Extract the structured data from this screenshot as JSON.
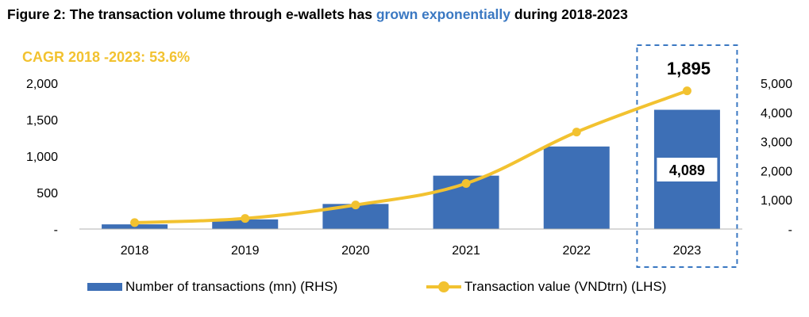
{
  "chart_data": {
    "type": "bar+line",
    "title": {
      "prefix": "Figure 2: The transaction volume through e-wallets has ",
      "highlight": "grown exponentially",
      "suffix": " during 2018-2023"
    },
    "annotation": "CAGR 2018 -2023: 53.6%",
    "categories": [
      "2018",
      "2019",
      "2020",
      "2021",
      "2022",
      "2023"
    ],
    "series": [
      {
        "name": "Number of transactions (mn) (RHS)",
        "type": "bar",
        "axis": "right",
        "color": "#3d6fb6",
        "values": [
          160,
          330,
          860,
          1830,
          2830,
          4089
        ]
      },
      {
        "name": "Transaction value (VNDtrn) (LHS)",
        "type": "line",
        "axis": "left",
        "color": "#f2c230",
        "values": [
          88,
          145,
          330,
          625,
          1330,
          1895
        ]
      }
    ],
    "left_axis": {
      "ylim": [
        0,
        2000
      ],
      "ticks": [
        0,
        500,
        1000,
        1500,
        2000
      ],
      "tick_labels": [
        "-",
        "500",
        "1,000",
        "1,500",
        "2,000"
      ]
    },
    "right_axis": {
      "ylim": [
        0,
        5000
      ],
      "ticks": [
        0,
        1000,
        2000,
        3000,
        4000,
        5000
      ],
      "tick_labels": [
        "-",
        "1,000",
        "2,000",
        "3,000",
        "4,000",
        "5,000"
      ]
    },
    "data_labels": {
      "line_last": "1,895",
      "bar_last": "4,089"
    },
    "highlight_category": "2023",
    "grid": false,
    "legend_position": "bottom"
  }
}
